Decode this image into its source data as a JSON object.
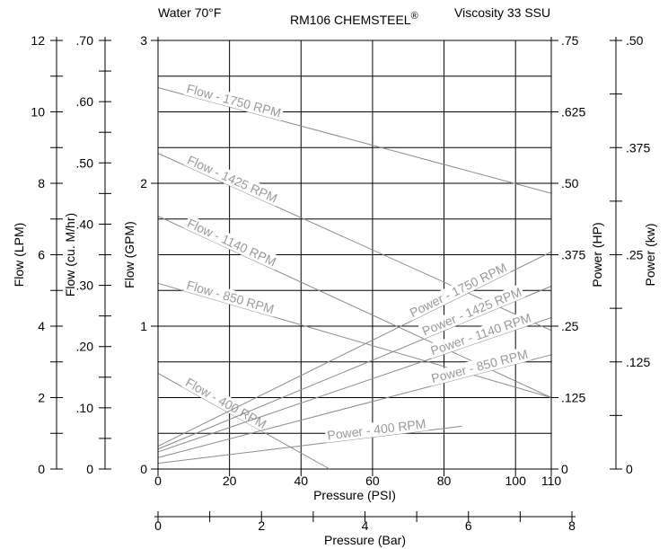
{
  "chart_data": {
    "type": "line",
    "header": {
      "left": "Water 70°F",
      "center": "RM106 CHEMSTEEL",
      "center_mark": "®",
      "right": "Viscosity 33 SSU"
    },
    "axes": {
      "pressure_psi": {
        "title": "Pressure (PSI)",
        "range": [
          0,
          110
        ],
        "ticks": [
          "0",
          "20",
          "40",
          "60",
          "80",
          "100",
          "110"
        ]
      },
      "pressure_bar": {
        "title": "Pressure (Bar)",
        "range": [
          0,
          8
        ],
        "ticks": [
          "0",
          "2",
          "4",
          "6",
          "8"
        ]
      },
      "flow_gpm": {
        "title": "Flow (GPM)",
        "range": [
          0,
          3
        ],
        "ticks": [
          "0",
          "1",
          "2",
          "3"
        ]
      },
      "flow_cum_hr": {
        "title": "Flow (cu. M/hr)",
        "range": [
          0,
          0.7
        ],
        "ticks": [
          "0",
          ".10",
          ".20",
          ".30",
          ".40",
          ".50",
          ".60",
          ".70"
        ]
      },
      "flow_lpm": {
        "title": "Flow (LPM)",
        "range": [
          0,
          12
        ],
        "ticks": [
          "0",
          "2",
          "4",
          "6",
          "8",
          "10",
          "12"
        ]
      },
      "power_hp": {
        "title": "Power (HP)",
        "range": [
          0,
          0.75
        ],
        "ticks": [
          "0",
          ".125",
          ".25",
          ".375",
          ".50",
          ".625",
          ".75"
        ]
      },
      "power_kw": {
        "title": "Power (kw)",
        "range": [
          0,
          0.5
        ],
        "ticks": [
          "0",
          ".125",
          ".25",
          ".375",
          ".50"
        ]
      }
    },
    "grid": true,
    "series": [
      {
        "name": "Flow - 1750 RPM",
        "axis": "flow_gpm",
        "x": [
          0,
          110
        ],
        "y": [
          2.67,
          1.93
        ]
      },
      {
        "name": "Flow - 1425 RPM",
        "axis": "flow_gpm",
        "x": [
          0,
          110
        ],
        "y": [
          2.21,
          0.97
        ]
      },
      {
        "name": "Flow - 1140 RPM",
        "axis": "flow_gpm",
        "x": [
          0,
          110
        ],
        "y": [
          1.77,
          0.5
        ]
      },
      {
        "name": "Flow - 850 RPM",
        "axis": "flow_gpm",
        "x": [
          0,
          110
        ],
        "y": [
          1.3,
          0.5
        ]
      },
      {
        "name": "Flow - 400 RPM",
        "axis": "flow_gpm",
        "x": [
          0,
          48
        ],
        "y": [
          0.67,
          0
        ]
      },
      {
        "name": "Power - 1750 RPM",
        "axis": "power_hp",
        "x": [
          0,
          110
        ],
        "y": [
          0.04,
          0.38
        ]
      },
      {
        "name": "Power - 1425 RPM",
        "axis": "power_hp",
        "x": [
          0,
          110
        ],
        "y": [
          0.035,
          0.32
        ]
      },
      {
        "name": "Power - 1140 RPM",
        "axis": "power_hp",
        "x": [
          0,
          110
        ],
        "y": [
          0.03,
          0.265
        ]
      },
      {
        "name": "Power - 850 RPM",
        "axis": "power_hp",
        "x": [
          0,
          110
        ],
        "y": [
          0.02,
          0.2
        ]
      },
      {
        "name": "Power - 400 RPM",
        "axis": "power_hp",
        "x": [
          0,
          85
        ],
        "y": [
          0.01,
          0.075
        ]
      }
    ]
  }
}
